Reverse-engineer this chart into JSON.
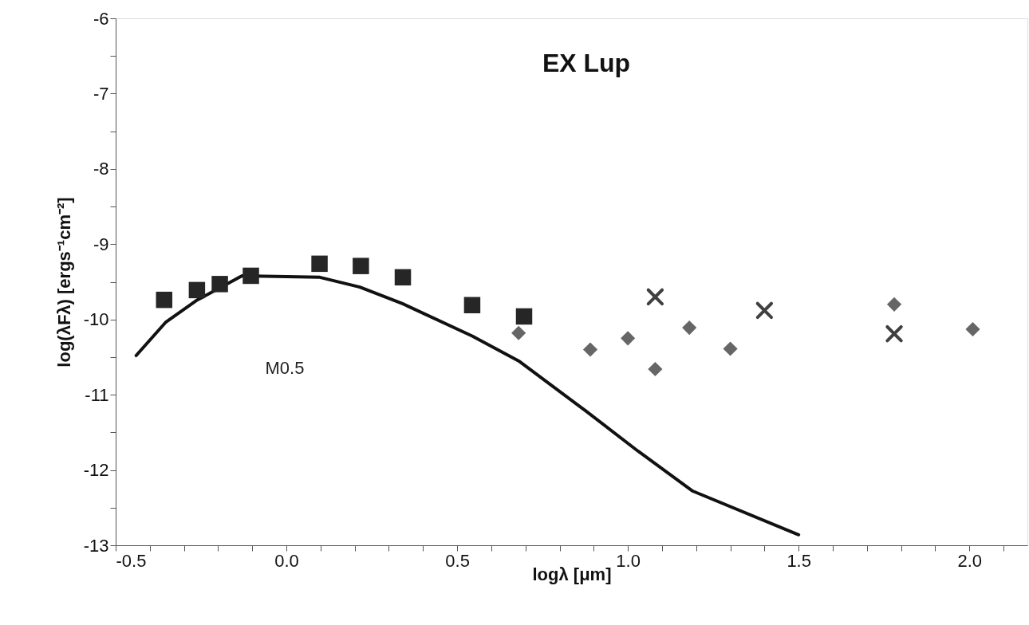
{
  "chart_data": {
    "type": "scatter",
    "title": "EX Lup",
    "xlabel": "logλ [μm]",
    "ylabel": "log(λFλ) [ergs⁻¹cm⁻²]",
    "xlim": [
      -0.5,
      2.17
    ],
    "ylim": [
      -13,
      -6
    ],
    "xticks": [
      {
        "value": -0.5,
        "label": "-0.5"
      },
      {
        "value": -0.4,
        "label": null
      },
      {
        "value": -0.3,
        "label": null
      },
      {
        "value": -0.2,
        "label": null
      },
      {
        "value": -0.1,
        "label": null
      },
      {
        "value": 0,
        "label": "0.0"
      },
      {
        "value": 0.1,
        "label": null
      },
      {
        "value": 0.2,
        "label": null
      },
      {
        "value": 0.3,
        "label": null
      },
      {
        "value": 0.4,
        "label": null
      },
      {
        "value": 0.5,
        "label": "0.5"
      },
      {
        "value": 0.6,
        "label": null
      },
      {
        "value": 0.7,
        "label": null
      },
      {
        "value": 0.8,
        "label": null
      },
      {
        "value": 0.9,
        "label": null
      },
      {
        "value": 1.0,
        "label": "1.0"
      },
      {
        "value": 1.1,
        "label": null
      },
      {
        "value": 1.2,
        "label": null
      },
      {
        "value": 1.3,
        "label": null
      },
      {
        "value": 1.4,
        "label": null
      },
      {
        "value": 1.5,
        "label": "1.5"
      },
      {
        "value": 1.6,
        "label": null
      },
      {
        "value": 1.7,
        "label": null
      },
      {
        "value": 1.8,
        "label": null
      },
      {
        "value": 1.9,
        "label": null
      },
      {
        "value": 2.0,
        "label": "2.0"
      },
      {
        "value": 2.1,
        "label": null
      }
    ],
    "yticks": [
      -13,
      {
        "value": -12.5,
        "label": null
      },
      -12,
      {
        "value": -11.5,
        "label": null
      },
      -11,
      {
        "value": -10.5,
        "label": null
      },
      -10,
      {
        "value": -9.5,
        "label": null
      },
      -9,
      {
        "value": -8.5,
        "label": null
      },
      -8,
      {
        "value": -7.5,
        "label": null
      },
      -7,
      {
        "value": -6.5,
        "label": null
      },
      -6
    ],
    "grid": false,
    "series": [
      {
        "type": "line",
        "color": "#111111",
        "marker": "none",
        "line_style": "solid",
        "x": [
          -0.44,
          -0.354,
          -0.264,
          -0.13,
          0.098,
          0.215,
          0.34,
          0.544,
          0.68,
          0.878,
          1.03,
          1.19,
          1.5
        ],
        "values": [
          -10.48,
          -10.04,
          -9.75,
          -9.42,
          -9.44,
          -9.57,
          -9.79,
          -10.22,
          -10.55,
          -11.22,
          -11.75,
          -12.28,
          -12.86
        ]
      },
      {
        "color": "#262626",
        "marker": "square",
        "x": [
          -0.358,
          -0.262,
          -0.195,
          -0.104,
          0.097,
          0.218,
          0.341,
          0.544,
          0.696
        ],
        "values": [
          -9.74,
          -9.61,
          -9.53,
          -9.42,
          -9.26,
          -9.29,
          -9.44,
          -9.81,
          -9.96
        ]
      },
      {
        "color": "#666666",
        "marker": "diamond",
        "x": [
          0.68,
          0.89,
          1.0,
          1.08,
          1.18,
          1.3,
          1.78,
          2.01
        ],
        "values": [
          -10.18,
          -10.4,
          -10.25,
          -10.66,
          -10.11,
          -10.39,
          -9.8,
          -10.13
        ]
      },
      {
        "color": "#404040",
        "marker": "cross",
        "x": [
          1.08,
          1.4,
          1.78
        ],
        "values": [
          -9.7,
          -9.88,
          -10.19
        ]
      }
    ],
    "annotations": [
      "M0.5"
    ]
  }
}
